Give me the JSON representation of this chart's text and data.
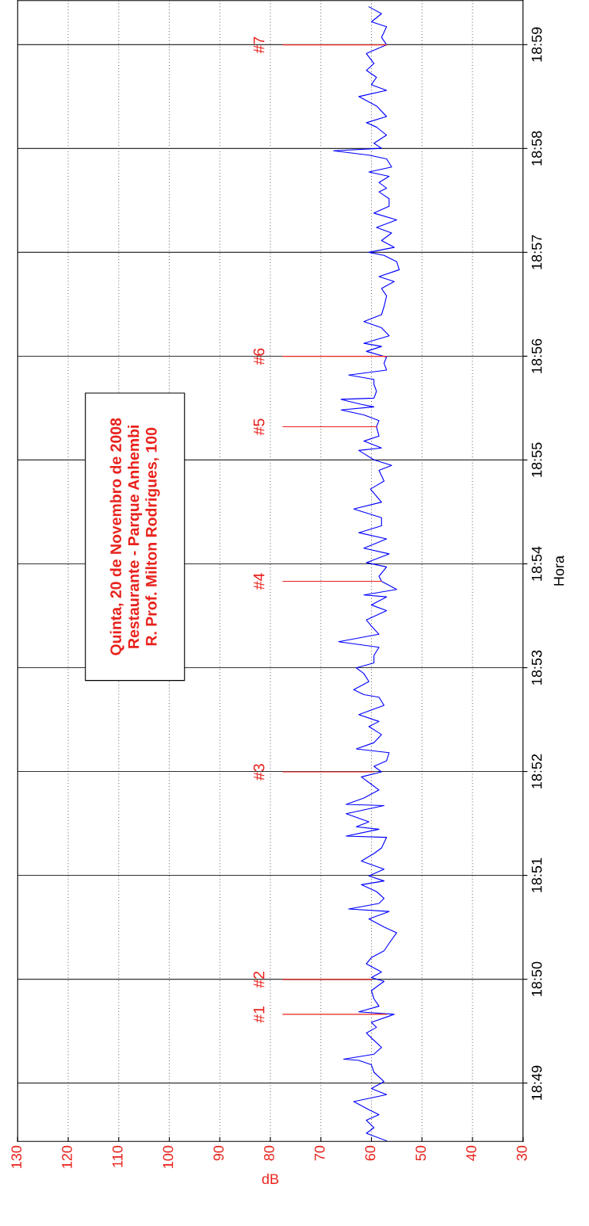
{
  "chart_data": {
    "type": "line",
    "xlabel": "dB",
    "ylabel": "Hora",
    "ylim": [
      18.8073,
      18.9904
    ],
    "xlim": [
      130,
      30
    ],
    "yticks": [
      {
        "value": 18.81667,
        "label": "18:49"
      },
      {
        "value": 18.83333,
        "label": "18:50"
      },
      {
        "value": 18.85,
        "label": "18:51"
      },
      {
        "value": 18.86667,
        "label": "18:52"
      },
      {
        "value": 18.88333,
        "label": "18:53"
      },
      {
        "value": 18.9,
        "label": "18:54"
      },
      {
        "value": 18.91667,
        "label": "18:55"
      },
      {
        "value": 18.93333,
        "label": "18:56"
      },
      {
        "value": 18.95,
        "label": "18:57"
      },
      {
        "value": 18.96667,
        "label": "18:58"
      },
      {
        "value": 18.98333,
        "label": "18:59"
      }
    ],
    "xticks": [
      30,
      40,
      50,
      60,
      70,
      80,
      90,
      100,
      110,
      120,
      130
    ],
    "grid": true,
    "marker": "none",
    "line_style": "solid",
    "series": [
      {
        "color": "#0000ff",
        "values": [
          18.8074,
          18.8086,
          18.8095,
          18.8107,
          18.8116,
          18.8124,
          18.8137,
          18.8148,
          18.8158,
          18.8169,
          18.8184,
          18.8196,
          18.8203,
          18.8205,
          18.8213,
          18.8224,
          18.8239,
          18.8247,
          18.8256,
          18.8264,
          18.8277,
          18.8281,
          18.829,
          18.8302,
          18.8315,
          18.833,
          18.8336,
          18.8345,
          18.8358,
          18.8368,
          18.8379,
          18.8391,
          18.8408,
          18.8417,
          18.843,
          18.8442,
          18.8446,
          18.8455,
          18.8463,
          18.8474,
          18.8485,
          18.8491,
          18.8499,
          18.851,
          18.8523,
          18.8535,
          18.8544,
          18.8561,
          18.8563,
          18.8574,
          18.8578,
          18.8586,
          18.8599,
          18.8612,
          18.8614,
          18.8624,
          18.8637,
          18.8646,
          18.8658,
          18.8666,
          18.8675,
          18.8684,
          18.8697,
          18.8703,
          18.8713,
          18.8726,
          18.8739,
          18.8747,
          18.8758,
          18.8773,
          18.8786,
          18.879,
          18.8798,
          18.8811,
          18.8824,
          18.8833,
          18.8841,
          18.8853,
          18.8866,
          18.8875,
          18.8887,
          18.89,
          18.891,
          18.8925,
          18.8934,
          18.8947,
          18.895,
          18.8959,
          18.8972,
          18.898,
          18.8995,
          18.9002,
          18.9016,
          18.9025,
          18.904,
          18.905,
          18.9061,
          18.9074,
          18.9088,
          18.9099,
          18.912,
          18.9133,
          18.915,
          18.9158,
          18.9167,
          18.9182,
          18.9186,
          18.9197,
          18.9205,
          18.922,
          18.923,
          18.9239,
          18.9247,
          18.9252,
          18.9256,
          18.9264,
          18.9266,
          18.9277,
          18.9288,
          18.9296,
          18.9303,
          18.9311,
          18.9322,
          18.9332,
          18.9341,
          18.9349,
          18.9354,
          18.9366,
          18.9379,
          18.9389,
          18.94,
          18.9413,
          18.943,
          18.9442,
          18.9453,
          18.9461,
          18.9472,
          18.9485,
          18.9495,
          18.95,
          18.9508,
          18.9519,
          18.9531,
          18.954,
          18.9552,
          18.9563,
          18.9574,
          18.9586,
          18.9597,
          18.9603,
          18.9612,
          18.9622,
          18.9629,
          18.9637,
          18.965,
          18.9656,
          18.9663,
          18.9667,
          18.9675,
          18.9688,
          18.9701,
          18.9708,
          18.9718,
          18.9735,
          18.975,
          18.976,
          18.9769,
          18.9781,
          18.9792,
          18.9803,
          18.9819,
          18.9833,
          18.9845,
          18.9862,
          18.987,
          18.9883,
          18.9894
        ],
        "x": [
          57,
          61,
          59.5,
          61,
          58.5,
          60.5,
          63.5,
          57,
          60,
          57.5,
          59.5,
          60,
          62.5,
          65.5,
          59.5,
          58,
          60,
          61,
          59,
          60,
          55.5,
          62.5,
          58.5,
          59.5,
          60,
          57.5,
          60,
          58,
          61,
          60,
          57.5,
          56.5,
          55,
          57.5,
          60.5,
          56.5,
          64.5,
          58.5,
          57.5,
          59,
          62,
          57.5,
          60.5,
          57.5,
          62,
          59.5,
          58,
          57,
          65,
          58.5,
          63,
          60.5,
          65,
          57.5,
          65,
          61.5,
          58.5,
          60,
          62,
          58,
          59.5,
          57,
          56.5,
          63,
          59.5,
          58,
          60.5,
          58.5,
          62.5,
          57.5,
          58.5,
          61.5,
          63.5,
          60.5,
          61.5,
          63,
          59.5,
          59.5,
          58.5,
          66.5,
          58.5,
          60,
          61,
          57,
          60,
          57,
          61.5,
          55,
          58,
          58.5,
          57,
          61,
          56.5,
          61.5,
          57,
          62.5,
          58,
          58,
          63.5,
          58,
          60.2,
          57.5,
          58.5,
          56,
          59.5,
          62.5,
          58,
          61.5,
          58.5,
          59,
          58.5,
          61.5,
          66,
          59.5,
          62,
          66,
          59.5,
          59,
          59.5,
          59.5,
          64.5,
          57,
          57.5,
          57,
          61,
          58,
          61.5,
          56.5,
          58,
          61.5,
          58,
          57.5,
          57,
          58,
          55.5,
          58.5,
          54.5,
          55,
          57.5,
          60.5,
          55.5,
          58,
          56,
          59,
          55,
          59.5,
          56.5,
          56.5,
          58.5,
          57,
          58.5,
          56.5,
          60.5,
          56,
          57,
          60.5,
          67.5,
          58,
          59.5,
          57,
          59,
          61,
          57,
          59,
          62.5,
          57,
          60,
          59,
          61,
          59.5,
          61,
          57,
          58,
          57,
          60,
          58,
          60.5
        ]
      }
    ],
    "annotations": [
      {
        "text": "#1",
        "y": 18.8277,
        "x": 57
      },
      {
        "text": "#2",
        "y": 18.8333,
        "x": 60
      },
      {
        "text": "#3",
        "y": 18.8666,
        "x": 59.5
      },
      {
        "text": "#4",
        "y": 18.8972,
        "x": 58
      },
      {
        "text": "#5",
        "y": 18.922,
        "x": 59
      },
      {
        "text": "#6",
        "y": 18.9333,
        "x": 57
      },
      {
        "text": "#7",
        "y": 18.9833,
        "x": 57
      },
      "Quinta, 20 de Novembro de 2008\nRestaurante - Parque Anhembi\nR. Prof. Milton Rodrigues, 100"
    ]
  }
}
